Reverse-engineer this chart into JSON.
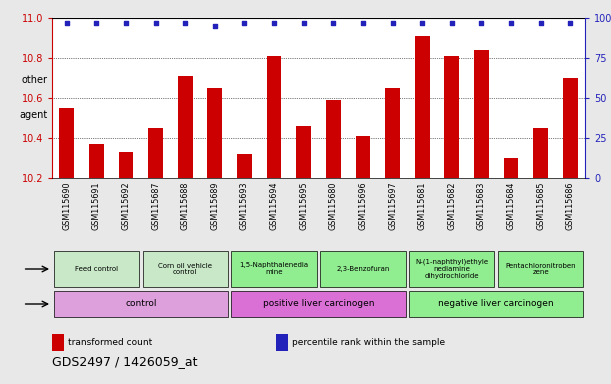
{
  "title": "GDS2497 / 1426059_at",
  "samples": [
    "GSM115690",
    "GSM115691",
    "GSM115692",
    "GSM115687",
    "GSM115688",
    "GSM115689",
    "GSM115693",
    "GSM115694",
    "GSM115695",
    "GSM115680",
    "GSM115696",
    "GSM115697",
    "GSM115681",
    "GSM115682",
    "GSM115683",
    "GSM115684",
    "GSM115685",
    "GSM115686"
  ],
  "bar_values": [
    10.55,
    10.37,
    10.33,
    10.45,
    10.71,
    10.65,
    10.32,
    10.81,
    10.46,
    10.59,
    10.41,
    10.65,
    10.91,
    10.81,
    10.84,
    10.3,
    10.45,
    10.7
  ],
  "percentile_values": [
    97,
    97,
    97,
    97,
    97,
    95,
    97,
    97,
    97,
    97,
    97,
    97,
    97,
    97,
    97,
    97,
    97,
    97
  ],
  "ylim_left": [
    10.2,
    11.0
  ],
  "ylim_right": [
    0,
    100
  ],
  "yticks_left": [
    10.2,
    10.4,
    10.6,
    10.8,
    11.0
  ],
  "yticks_right": [
    0,
    25,
    50,
    75,
    100
  ],
  "bar_color": "#cc0000",
  "percentile_color": "#2222bb",
  "fig_bg_color": "#e8e8e8",
  "plot_bg_color": "#ffffff",
  "xtick_bg_color": "#cccccc",
  "agent_groups": [
    {
      "label": "Feed control",
      "start": 0,
      "end": 3,
      "color": "#c8e8c8"
    },
    {
      "label": "Corn oil vehicle\ncontrol",
      "start": 3,
      "end": 6,
      "color": "#c8e8c8"
    },
    {
      "label": "1,5-Naphthalenedia\nmine",
      "start": 6,
      "end": 9,
      "color": "#90ee90"
    },
    {
      "label": "2,3-Benzofuran",
      "start": 9,
      "end": 12,
      "color": "#90ee90"
    },
    {
      "label": "N-(1-naphthyl)ethyle\nnediamine\ndihydrochloride",
      "start": 12,
      "end": 15,
      "color": "#90ee90"
    },
    {
      "label": "Pentachloronitroben\nzene",
      "start": 15,
      "end": 18,
      "color": "#90ee90"
    }
  ],
  "other_groups": [
    {
      "label": "control",
      "start": 0,
      "end": 6,
      "color": "#dda0dd"
    },
    {
      "label": "positive liver carcinogen",
      "start": 6,
      "end": 12,
      "color": "#da70d6"
    },
    {
      "label": "negative liver carcinogen",
      "start": 12,
      "end": 18,
      "color": "#90ee90"
    }
  ],
  "legend_items": [
    {
      "color": "#cc0000",
      "label": "transformed count"
    },
    {
      "color": "#2222bb",
      "label": "percentile rank within the sample"
    }
  ]
}
